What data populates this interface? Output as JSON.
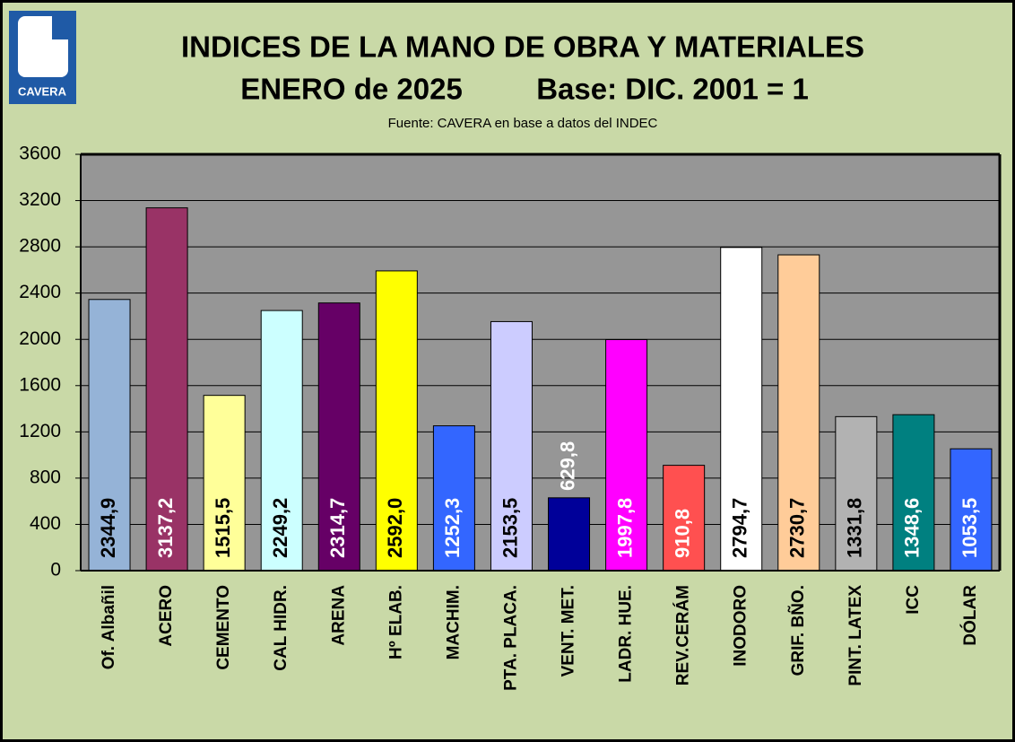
{
  "chart_data": {
    "type": "bar",
    "logo": "CAVERA",
    "title": "INDICES DE LA MANO DE OBRA Y MATERIALES",
    "subtitle": [
      "ENERO de 2025",
      "Base: DIC. 2001 = 1"
    ],
    "source": "Fuente: CAVERA en base a datos del INDEC",
    "categories": [
      "Of. Albañil",
      "ACERO",
      "CEMENTO",
      "CAL HIDR.",
      "ARENA",
      "Hº ELAB.",
      "MACHIM.",
      "PTA. PLACA.",
      "VENT. MET.",
      "LADR. HUE.",
      "REV.CERÁM",
      "INODORO",
      "GRIF. BÑO.",
      "PINT. LATEX",
      "ICC",
      "DÓLAR"
    ],
    "values": [
      2344.9,
      3137.2,
      1515.5,
      2249.2,
      2314.7,
      2592.0,
      1252.3,
      2153.5,
      629.8,
      1997.8,
      910.8,
      2794.7,
      2730.7,
      1331.8,
      1348.6,
      1053.5
    ],
    "value_labels": [
      "2344,9",
      "3137,2",
      "1515,5",
      "2249,2",
      "2314,7",
      "2592,0",
      "1252,3",
      "2153,5",
      "629,8",
      "1997,8",
      "910,8",
      "2794,7",
      "2730,7",
      "1331,8",
      "1348,6",
      "1053,5"
    ],
    "colors": [
      "#95b3d7",
      "#993366",
      "#ffff99",
      "#ccffff",
      "#660066",
      "#ffff00",
      "#3366ff",
      "#ccccff",
      "#000099",
      "#ff00ff",
      "#ff5050",
      "#ffffff",
      "#ffcc99",
      "#b2b2b2",
      "#008080",
      "#3366ff"
    ],
    "ylim": [
      0,
      3600
    ],
    "yticks": [
      0,
      400,
      800,
      1200,
      1600,
      2000,
      2400,
      2800,
      3200,
      3600
    ],
    "grid": true
  }
}
